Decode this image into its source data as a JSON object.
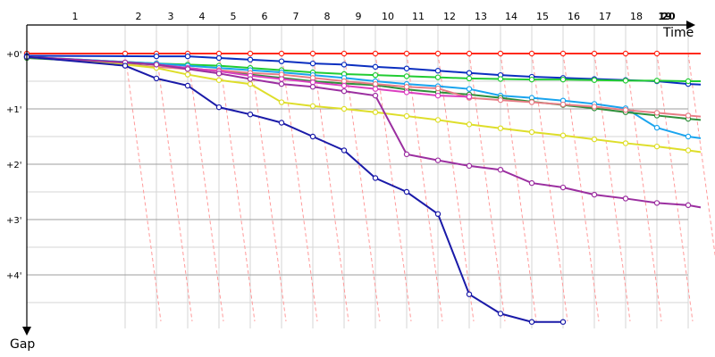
{
  "chart_data": {
    "type": "line",
    "title": "",
    "xlabel": "Time",
    "ylabel": "Gap",
    "y_unit_note": "gap in minutes behind leader (ticks printed as +0', +1', ...)",
    "x_ticks": [
      "1",
      "2",
      "3",
      "4",
      "5",
      "6",
      "7",
      "8",
      "9",
      "10",
      "11",
      "12",
      "13",
      "14",
      "15",
      "16",
      "17",
      "18",
      "19",
      "20"
    ],
    "y_ticks": [
      "+0'",
      "+1'",
      "+2'",
      "+3'",
      "+4'"
    ],
    "xlim": [
      1,
      20.4
    ],
    "ylim": [
      0,
      5.1
    ],
    "grid": true,
    "legend": "none",
    "colors": {
      "minor_grid": "#d6d6d6",
      "major_grid": "#9e9e9e",
      "lapping_lines": "#ff9a9a",
      "axis": "#000000"
    },
    "series": [
      {
        "color": "#ff2a1a",
        "x": [
          1,
          2,
          3,
          4,
          5,
          6,
          7,
          8,
          9,
          10,
          11,
          12,
          13,
          14,
          15,
          16,
          17,
          18,
          19,
          20.4
        ],
        "values": [
          0,
          0,
          0,
          0,
          0,
          0,
          0,
          0,
          0,
          0,
          0,
          0,
          0,
          0,
          0,
          0,
          0,
          0,
          0,
          0
        ]
      },
      {
        "color": "#0b2fc0",
        "x": [
          1,
          3,
          4,
          5,
          6,
          7,
          8,
          9,
          10,
          11,
          12,
          13,
          14,
          15,
          16,
          17,
          18,
          19,
          20,
          20.4
        ],
        "values": [
          0.04,
          0.05,
          0.05,
          0.08,
          0.11,
          0.14,
          0.18,
          0.2,
          0.24,
          0.27,
          0.31,
          0.35,
          0.39,
          0.42,
          0.44,
          0.46,
          0.48,
          0.5,
          0.55,
          0.56
        ]
      },
      {
        "color": "#22cc33",
        "x": [
          1,
          3,
          4,
          5,
          6,
          7,
          8,
          9,
          10,
          11,
          12,
          13,
          14,
          15,
          16,
          17,
          18,
          19,
          20,
          20.4
        ],
        "values": [
          0.06,
          0.18,
          0.2,
          0.22,
          0.26,
          0.3,
          0.34,
          0.37,
          0.39,
          0.41,
          0.43,
          0.45,
          0.46,
          0.47,
          0.47,
          0.48,
          0.49,
          0.49,
          0.5,
          0.5
        ]
      },
      {
        "color": "#1aa4ee",
        "x": [
          1,
          3,
          4,
          5,
          6,
          7,
          8,
          9,
          10,
          11,
          12,
          13,
          14,
          15,
          16,
          17,
          18,
          19,
          20,
          20.4
        ],
        "values": [
          0.06,
          0.18,
          0.22,
          0.26,
          0.3,
          0.34,
          0.39,
          0.44,
          0.5,
          0.55,
          0.59,
          0.64,
          0.76,
          0.8,
          0.85,
          0.91,
          0.99,
          1.34,
          1.5,
          1.53
        ]
      },
      {
        "color": "#2f8f3a",
        "x": [
          1,
          3,
          4,
          5,
          6,
          7,
          8,
          9,
          10,
          11,
          12,
          13,
          14,
          15,
          16,
          17,
          18,
          19,
          20,
          20.4
        ],
        "values": [
          0.08,
          0.2,
          0.26,
          0.32,
          0.38,
          0.44,
          0.5,
          0.54,
          0.57,
          0.65,
          0.7,
          0.74,
          0.8,
          0.87,
          0.93,
          0.99,
          1.06,
          1.12,
          1.18,
          1.2
        ]
      },
      {
        "color": "#e87d86",
        "x": [
          1,
          3,
          4,
          5,
          6,
          7,
          8,
          9,
          10,
          11,
          12,
          13,
          14,
          15,
          16,
          17,
          18,
          19,
          20,
          20.4
        ],
        "values": [
          0.06,
          0.24,
          0.28,
          0.3,
          0.35,
          0.38,
          0.44,
          0.5,
          0.55,
          0.6,
          0.63,
          0.8,
          0.84,
          0.88,
          0.92,
          0.96,
          1.02,
          1.07,
          1.12,
          1.14
        ]
      },
      {
        "color": "#db3fc0",
        "x": [
          1,
          2,
          3,
          4,
          5,
          6,
          7,
          8,
          9,
          10,
          11,
          12,
          13
        ],
        "values": [
          0.06,
          0.16,
          0.2,
          0.26,
          0.32,
          0.4,
          0.46,
          0.52,
          0.58,
          0.64,
          0.7,
          0.76,
          0.78
        ]
      },
      {
        "color": "#dede2a",
        "x": [
          1,
          2,
          3,
          4,
          5,
          6,
          7,
          8,
          9,
          10,
          11,
          12,
          13,
          14,
          15,
          16,
          17,
          18,
          19,
          20,
          20.4
        ],
        "values": [
          0.06,
          0.2,
          0.26,
          0.38,
          0.48,
          0.55,
          0.88,
          0.95,
          1,
          1.06,
          1.13,
          1.2,
          1.28,
          1.35,
          1.42,
          1.48,
          1.55,
          1.62,
          1.68,
          1.75,
          1.78
        ]
      },
      {
        "color": "#9b2fa0",
        "x": [
          1,
          2,
          3,
          4,
          5,
          6,
          7,
          8,
          9,
          10,
          11,
          12,
          13,
          14,
          15,
          16,
          17,
          18,
          19,
          20,
          20.4
        ],
        "values": [
          0.06,
          0.16,
          0.2,
          0.28,
          0.36,
          0.46,
          0.55,
          0.6,
          0.68,
          0.76,
          1.82,
          1.93,
          2.03,
          2.1,
          2.34,
          2.42,
          2.55,
          2.62,
          2.7,
          2.74,
          2.78
        ]
      },
      {
        "color": "#1a1aa8",
        "x": [
          1,
          2,
          3,
          4,
          5,
          6,
          7,
          8,
          9,
          10,
          11,
          12,
          13,
          14,
          15,
          16
        ],
        "values": [
          0.06,
          0.22,
          0.45,
          0.58,
          0.97,
          1.1,
          1.25,
          1.5,
          1.75,
          2.25,
          2.5,
          2.9,
          4.35,
          4.7,
          4.85,
          4.85
        ]
      }
    ]
  }
}
